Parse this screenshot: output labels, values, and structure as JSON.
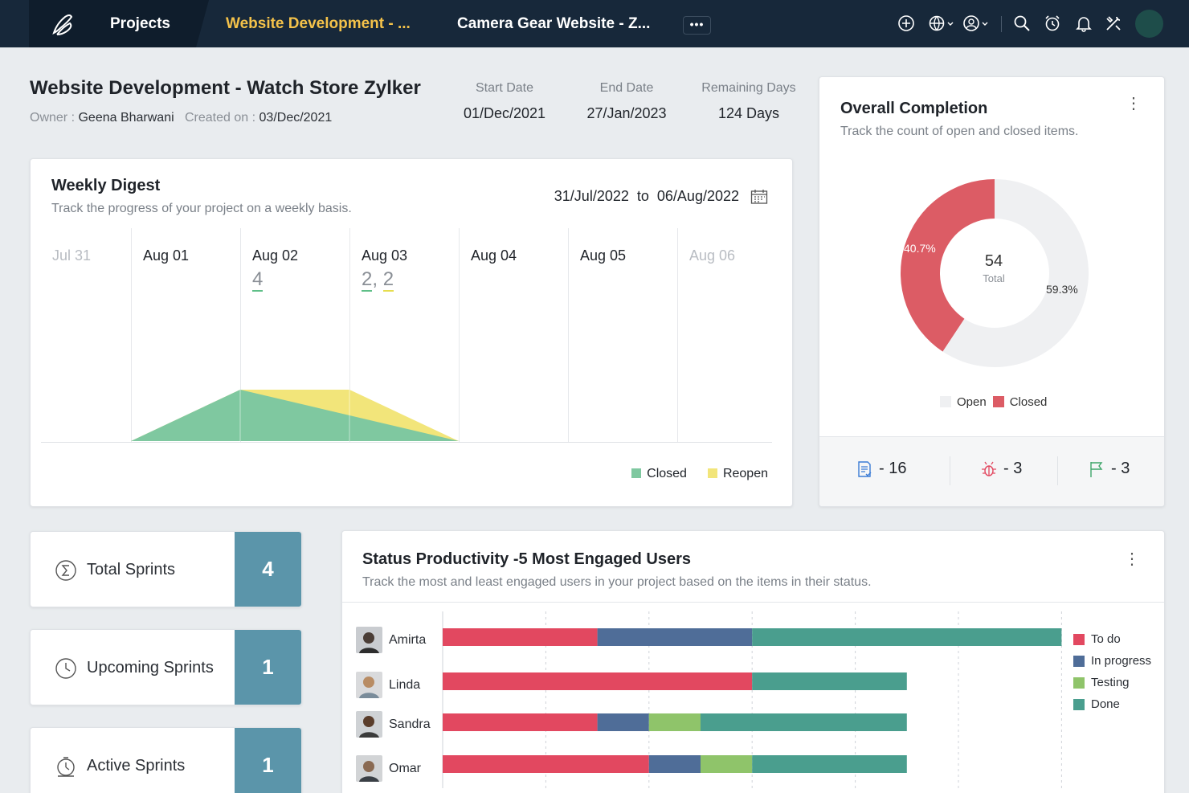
{
  "topbar": {
    "projects_label": "Projects",
    "tab_active": "Website Development - ...",
    "tab_other": "Camera Gear Website - Z...",
    "more_label": "•••",
    "icons": [
      "add-circle-icon",
      "globe-icon",
      "user-switch-icon",
      "search-icon",
      "alarm-clock-icon",
      "bell-icon",
      "tools-icon"
    ]
  },
  "project": {
    "title": "Website Development - Watch Store Zylker",
    "owner_label": "Owner :",
    "owner": "Geena Bharwani",
    "created_label": "Created on :",
    "created": "03/Dec/2021",
    "start_label": "Start Date",
    "start": "01/Dec/2021",
    "end_label": "End Date",
    "end": "27/Jan/2023",
    "remaining_label": "Remaining Days",
    "remaining": "124 Days"
  },
  "weekly_digest": {
    "title": "Weekly Digest",
    "subtitle": "Track the progress of your project on a weekly basis.",
    "range_from": "31/Jul/2022",
    "range_to_label": "to",
    "range_to": "06/Aug/2022",
    "days": [
      {
        "label": "Jul 31",
        "count": "",
        "muted": true
      },
      {
        "label": "Aug 01",
        "count": ""
      },
      {
        "label": "Aug 02",
        "count": "4"
      },
      {
        "label": "Aug 03",
        "count_a": "2",
        "count_b": "2"
      },
      {
        "label": "Aug 04",
        "count": ""
      },
      {
        "label": "Aug 05",
        "count": ""
      },
      {
        "label": "Aug 06",
        "count": "",
        "muted": true
      }
    ],
    "legend_closed": "Closed",
    "legend_reopen": "Reopen",
    "colors": {
      "closed": "#7fc8a0",
      "reopen": "#f2e57a"
    }
  },
  "overall_completion": {
    "title": "Overall Completion",
    "subtitle": "Track the count of open and closed items.",
    "total": "54",
    "total_label": "Total",
    "closed_pct": "40.7%",
    "open_pct": "59.3%",
    "legend_open": "Open",
    "legend_closed": "Closed",
    "colors": {
      "open": "#eff0f2",
      "closed": "#dc5c65"
    },
    "stats": {
      "tasks": "- 16",
      "bugs": "- 3",
      "milestones": "- 3"
    }
  },
  "sprints": {
    "total_label": "Total Sprints",
    "total": "4",
    "upcoming_label": "Upcoming Sprints",
    "upcoming": "1",
    "active_label": "Active Sprints",
    "active": "1"
  },
  "status_productivity": {
    "title": "Status Productivity -5 Most Engaged Users",
    "subtitle": "Track the most and least engaged users in your project based on the items in their status.",
    "legend": [
      "To do",
      "In progress",
      "Testing",
      "Done"
    ],
    "colors": [
      "#e24860",
      "#4f6d98",
      "#8fc46a",
      "#4a9e8e"
    ],
    "users": [
      "Amirta",
      "Linda",
      "Sandra",
      "Omar"
    ]
  },
  "chart_data": [
    {
      "type": "area",
      "title": "Weekly Digest",
      "categories": [
        "Jul 31",
        "Aug 01",
        "Aug 02",
        "Aug 03",
        "Aug 04",
        "Aug 05",
        "Aug 06"
      ],
      "series": [
        {
          "name": "Closed",
          "values": [
            0,
            0,
            4,
            2,
            0,
            0,
            0
          ]
        },
        {
          "name": "Reopen",
          "values": [
            0,
            0,
            0,
            2,
            0,
            0,
            0
          ]
        }
      ]
    },
    {
      "type": "pie",
      "title": "Overall Completion",
      "categories": [
        "Closed",
        "Open"
      ],
      "values": [
        40.7,
        59.3
      ],
      "total": 54
    },
    {
      "type": "bar",
      "title": "Status Productivity -5 Most Engaged Users",
      "categories": [
        "Amirta",
        "Linda",
        "Sandra",
        "Omar"
      ],
      "series": [
        {
          "name": "To do",
          "values": [
            3,
            6,
            3,
            4
          ]
        },
        {
          "name": "In progress",
          "values": [
            3,
            0,
            1,
            1
          ]
        },
        {
          "name": "Testing",
          "values": [
            0,
            0,
            1,
            1
          ]
        },
        {
          "name": "Done",
          "values": [
            6,
            3,
            4,
            3
          ]
        }
      ]
    }
  ]
}
